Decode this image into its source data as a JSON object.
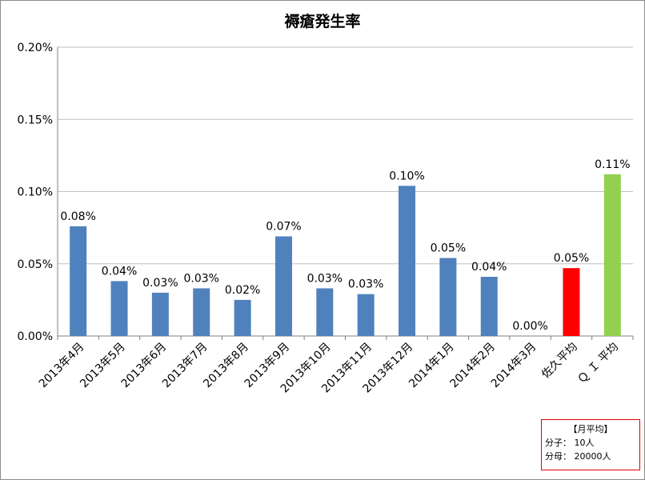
{
  "chart_data": {
    "type": "bar",
    "title": "褥瘡発生率",
    "categories": [
      "2013年4月",
      "2013年5月",
      "2013年6月",
      "2013年7月",
      "2013年8月",
      "2013年9月",
      "2013年10月",
      "2013年11月",
      "2013年12月",
      "2014年1月",
      "2014年2月",
      "2014年3月",
      "佐久平均",
      "Ｑ Ｉ 平均"
    ],
    "values": [
      0.076,
      0.038,
      0.03,
      0.033,
      0.025,
      0.069,
      0.033,
      0.029,
      0.104,
      0.054,
      0.041,
      0.0,
      0.047,
      0.112
    ],
    "data_labels": [
      "0.08%",
      "0.04%",
      "0.03%",
      "0.03%",
      "0.02%",
      "0.07%",
      "0.03%",
      "0.03%",
      "0.10%",
      "0.05%",
      "0.04%",
      "0.00%",
      "0.05%",
      "0.11%"
    ],
    "colors": [
      "#4f81bd",
      "#4f81bd",
      "#4f81bd",
      "#4f81bd",
      "#4f81bd",
      "#4f81bd",
      "#4f81bd",
      "#4f81bd",
      "#4f81bd",
      "#4f81bd",
      "#4f81bd",
      "#4f81bd",
      "#ff0000",
      "#92d050"
    ],
    "yticks": [
      0.0,
      0.05,
      0.1,
      0.15,
      0.2
    ],
    "ytick_labels": [
      "0.00%",
      "0.05%",
      "0.10%",
      "0.15%",
      "0.20%"
    ],
    "ylim": [
      0,
      0.2
    ],
    "unit": "%",
    "grid": true
  },
  "note": {
    "header": "【月平均】",
    "numerator": "分子：  10人",
    "denominator": "分母：  20000人"
  }
}
